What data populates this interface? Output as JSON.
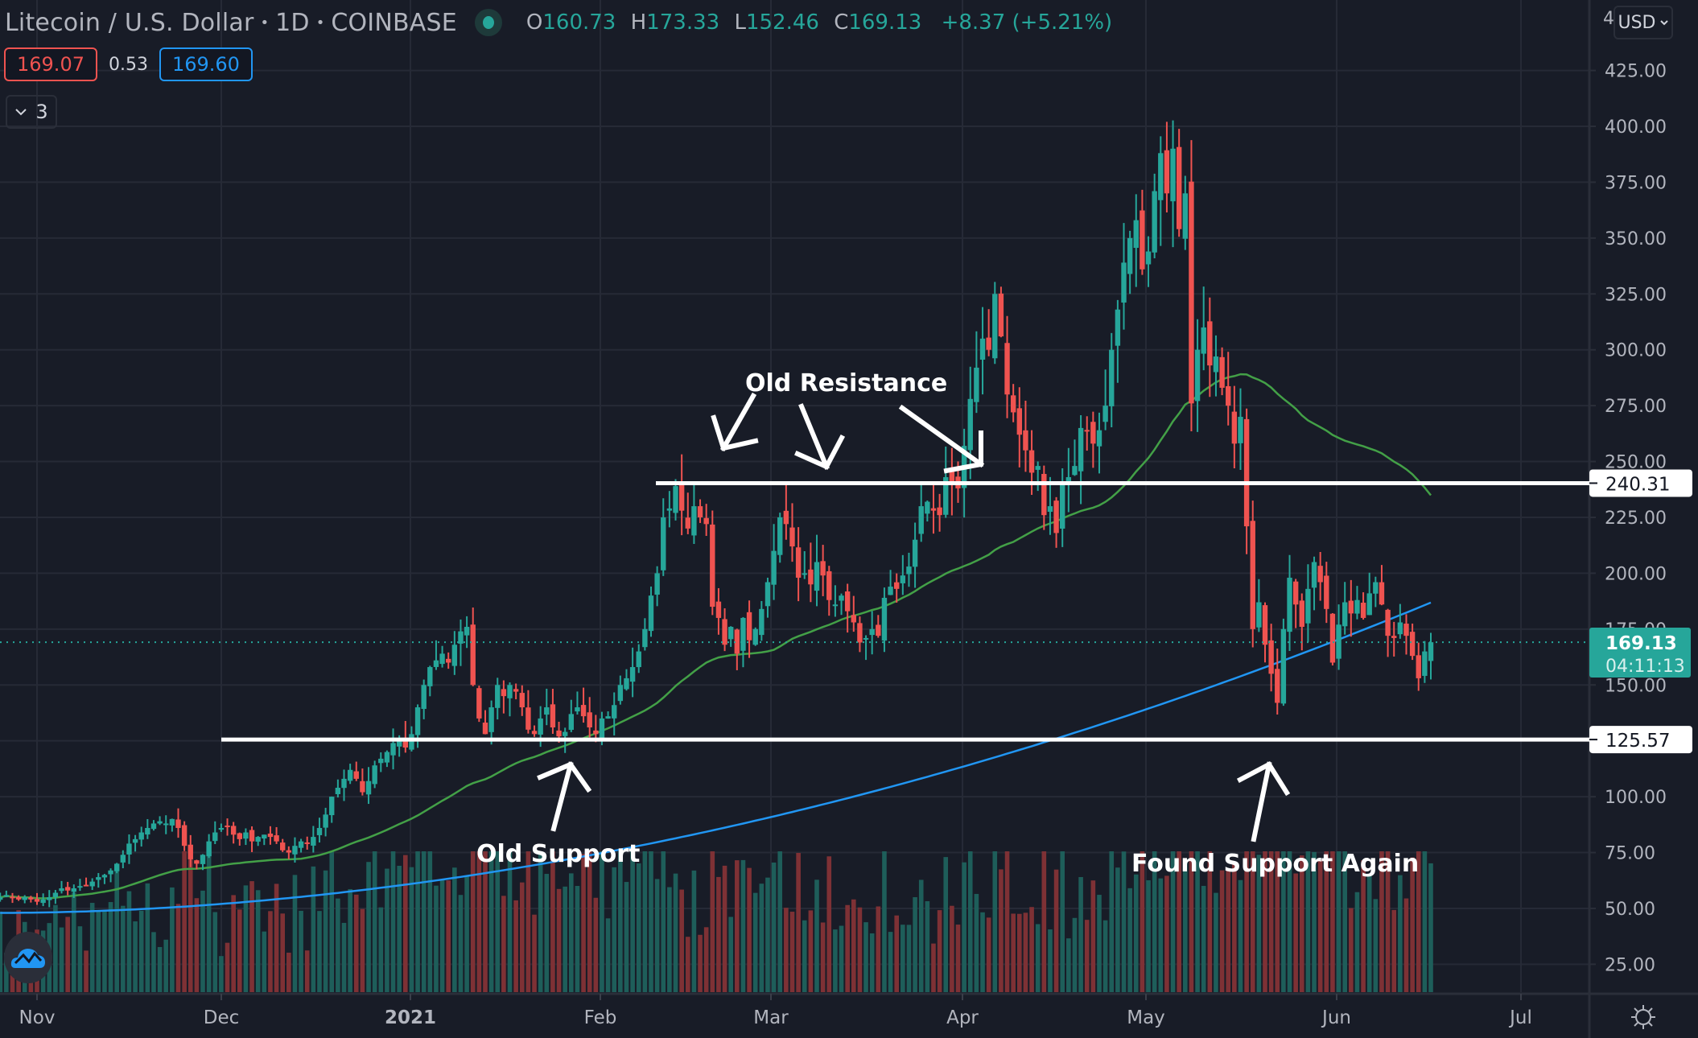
{
  "header": {
    "symbol_title": "Litecoin / U.S. Dollar",
    "interval": "1D",
    "exchange": "COINBASE",
    "ohlc": {
      "o_label": "O",
      "open": "160.73",
      "h_label": "H",
      "high": "173.33",
      "l_label": "L",
      "low": "152.46",
      "c_label": "C",
      "close": "169.13",
      "change": "+8.37 (+5.21%)"
    },
    "bid": "169.07",
    "spread": "0.53",
    "ask": "169.60",
    "indicators_collapsed_count": "3",
    "currency": "USD"
  },
  "colors": {
    "background": "#181c27",
    "grid": "#262a36",
    "up": "#26a69a",
    "down": "#ef5350",
    "vol_up": "#1e5e5a",
    "vol_down": "#7e3135",
    "ma_short": "#43a047",
    "ma_long": "#2196f3",
    "annotation": "#ffffff",
    "axis_text": "#b2b5be"
  },
  "chart_data": {
    "type": "candlestick",
    "title": "Litecoin / U.S. Dollar · 1D · COINBASE",
    "ylabel": "USD",
    "yticks": [
      "425.00",
      "400.00",
      "375.00",
      "350.00",
      "325.00",
      "300.00",
      "275.00",
      "250.00",
      "225.00",
      "200.00",
      "175.00",
      "150.00",
      "125.00",
      "100.00",
      "75.00",
      "50.00",
      "25.00"
    ],
    "ylim": [
      15,
      440
    ],
    "xticks": [
      "Nov",
      "Dec",
      "2021",
      "Feb",
      "Mar",
      "Apr",
      "May",
      "Jun",
      "Jul"
    ],
    "start_date": "2020-10-26",
    "closes": [
      55,
      56,
      55,
      54,
      55,
      54,
      53,
      54,
      55,
      57,
      59,
      58,
      59,
      60,
      60,
      62,
      64,
      65,
      67,
      70,
      74,
      79,
      81,
      84,
      86,
      88,
      89,
      88,
      90,
      86,
      78,
      72,
      70,
      74,
      80,
      84,
      86,
      87,
      83,
      81,
      84,
      80,
      82,
      83,
      82,
      80,
      76,
      75,
      78,
      80,
      79,
      82,
      86,
      92,
      100,
      104,
      108,
      112,
      108,
      102,
      107,
      114,
      117,
      120,
      124,
      126,
      122,
      128,
      140,
      150,
      158,
      161,
      164,
      160,
      168,
      174,
      176,
      150,
      135,
      128,
      140,
      150,
      145,
      150,
      147,
      140,
      130,
      128,
      135,
      140,
      131,
      127,
      129,
      137,
      140,
      136,
      131,
      128,
      135,
      136,
      141,
      150,
      153,
      158,
      165,
      175,
      190,
      200,
      225,
      229,
      239,
      228,
      220,
      230,
      225,
      222,
      185,
      180,
      168,
      176,
      164,
      180,
      170,
      175,
      184,
      196,
      210,
      225,
      222,
      212,
      198,
      200,
      195,
      205,
      199,
      188,
      186,
      190,
      183,
      178,
      169,
      171,
      175,
      172,
      189,
      194,
      193,
      199,
      203,
      215,
      230,
      232,
      228,
      226,
      243,
      240,
      238,
      257,
      278,
      292,
      305,
      300,
      325,
      306,
      280,
      272,
      262,
      255,
      245,
      248,
      226,
      230,
      218,
      240,
      243,
      248,
      265,
      264,
      258,
      264,
      275,
      300,
      318,
      339,
      350,
      358,
      336,
      344,
      371,
      388,
      370,
      390,
      354,
      370,
      276,
      300,
      310,
      293,
      297,
      283,
      275,
      258,
      270,
      221,
      175,
      187,
      168,
      155,
      142,
      175,
      198,
      186,
      176,
      193,
      205,
      196,
      184,
      160,
      177,
      187,
      182,
      188,
      180,
      191,
      196,
      186,
      172,
      171,
      178,
      172,
      163,
      153,
      165,
      169
    ],
    "series_overlays": [
      {
        "name": "MA short (green)",
        "color": "#43a047"
      },
      {
        "name": "MA long (blue)",
        "color": "#2196f3"
      }
    ],
    "horizontal_lines": [
      {
        "label": "Old Resistance",
        "value": 240.31
      },
      {
        "label": "Support",
        "value": 125.57
      }
    ],
    "last_price": "169.13",
    "countdown": "04:11:13"
  },
  "annotations": {
    "old_resistance": "Old Resistance",
    "old_support": "Old Support",
    "found_support": "Found Support Again"
  },
  "price_labels": {
    "resistance": "240.31",
    "support": "125.57",
    "last": "169.13",
    "countdown": "04:11:13"
  }
}
